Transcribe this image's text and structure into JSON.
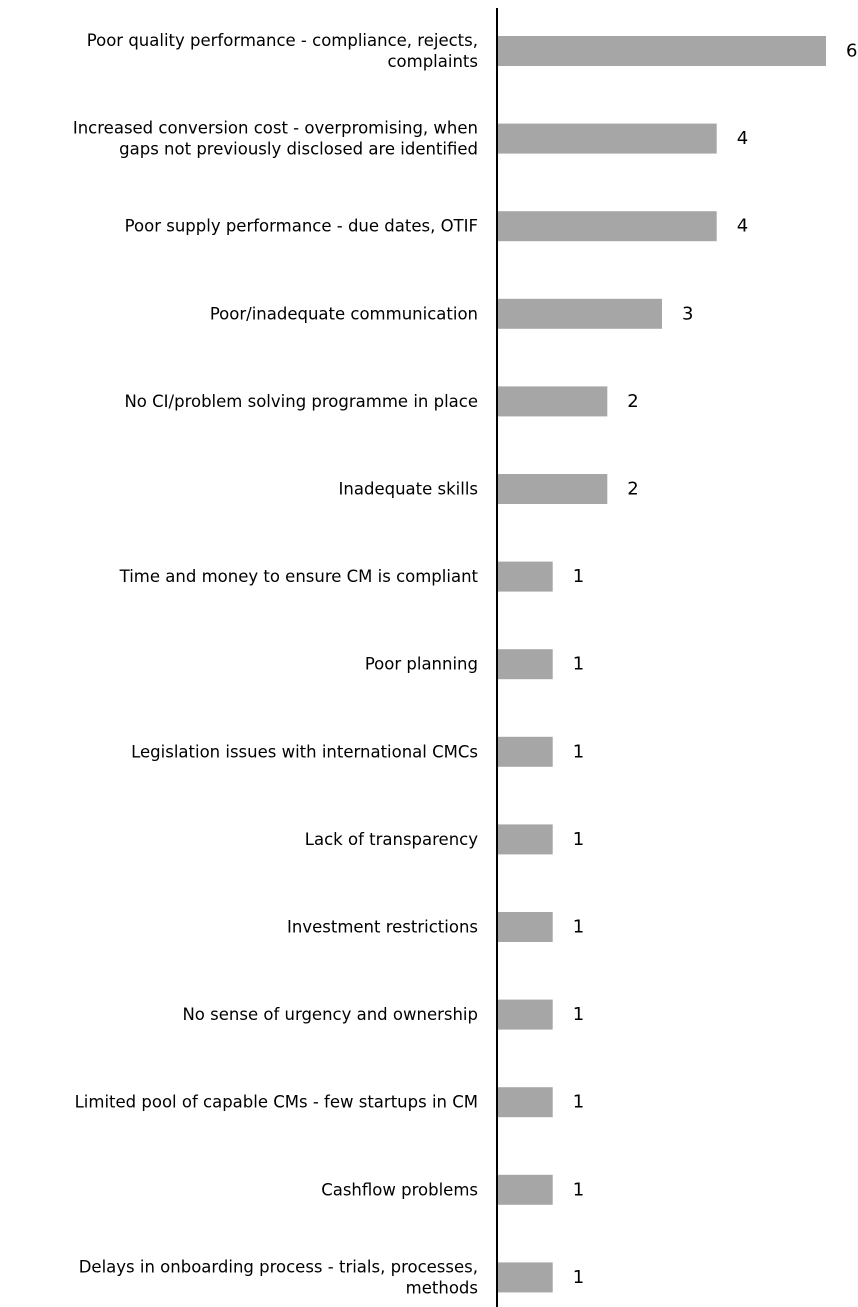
{
  "chart_data": {
    "type": "bar",
    "orientation": "horizontal",
    "title": "",
    "xlabel": "",
    "ylabel": "",
    "grid": false,
    "legend": "none",
    "xlim": [
      0,
      6
    ],
    "bar_color": "#a6a6a6",
    "axis_color": "#000000",
    "categories": [
      "Poor quality performance - compliance, rejects, complaints",
      "Increased conversion cost - overpromising, when gaps not previously disclosed are identified",
      "Poor supply performance - due dates, OTIF",
      "Poor/inadequate communication",
      "No CI/problem solving programme in place",
      "Inadequate skills",
      "Time and money to ensure CM is compliant",
      "Poor planning",
      "Legislation issues with international CMCs",
      "Lack of transparency",
      "Investment restrictions",
      "No sense of urgency and ownership",
      "Limited pool of capable CMs - few startups in CM",
      "Cashflow problems",
      "Delays in onboarding process - trials, processes, methods"
    ],
    "category_lines": [
      [
        "Poor quality performance - compliance, rejects,",
        "complaints"
      ],
      [
        "Increased conversion cost - overpromising, when",
        "gaps not previously disclosed are identified"
      ],
      [
        "Poor supply performance - due dates, OTIF"
      ],
      [
        "Poor/inadequate communication"
      ],
      [
        "No CI/problem solving programme in place"
      ],
      [
        "Inadequate skills"
      ],
      [
        "Time and money to ensure CM is compliant"
      ],
      [
        "Poor planning"
      ],
      [
        "Legislation issues with international CMCs"
      ],
      [
        "Lack of transparency"
      ],
      [
        "Investment restrictions"
      ],
      [
        "No sense of urgency and ownership"
      ],
      [
        "Limited pool of capable CMs - few startups in CM"
      ],
      [
        "Cashflow problems"
      ],
      [
        "Delays in onboarding process - trials, processes,",
        "methods"
      ]
    ],
    "values": [
      6,
      4,
      4,
      3,
      2,
      2,
      1,
      1,
      1,
      1,
      1,
      1,
      1,
      1,
      1
    ],
    "value_labels": [
      "6",
      "4",
      "4",
      "3",
      "2",
      "2",
      "1",
      "1",
      "1",
      "1",
      "1",
      "1",
      "1",
      "1",
      "1"
    ]
  }
}
